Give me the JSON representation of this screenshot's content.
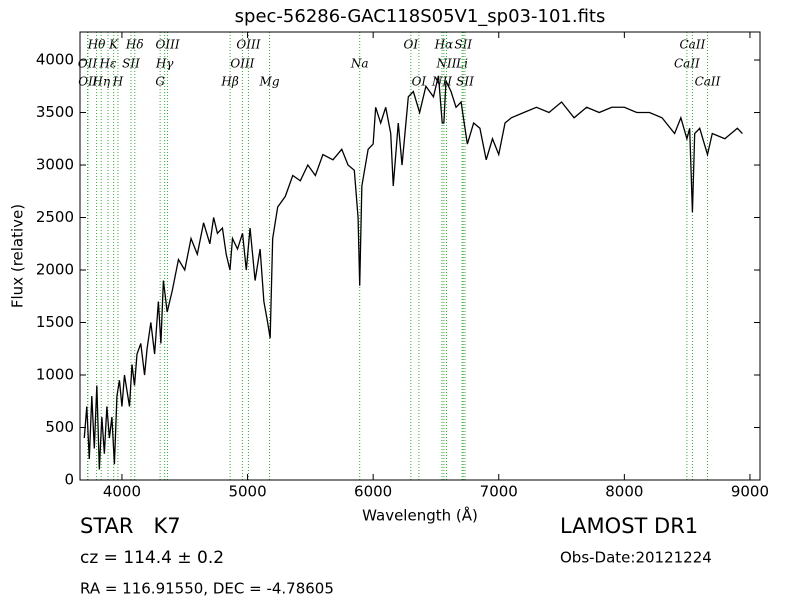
{
  "chart_data": {
    "type": "line",
    "title": "spec-56286-GAC118S05V1_sp03-101.fits",
    "x_label": "Wavelength (Å)",
    "y_label": "Flux (relative)",
    "xlim": [
      3666,
      9080
    ],
    "ylim": [
      0,
      4267
    ],
    "xticks": [
      4000,
      5000,
      6000,
      7000,
      8000,
      9000
    ],
    "yticks": [
      0,
      500,
      1000,
      1500,
      2000,
      2500,
      3000,
      3500,
      4000
    ],
    "grid": false,
    "series": [
      {
        "color": "#000000",
        "x": [
          3700,
          3720,
          3740,
          3760,
          3780,
          3800,
          3820,
          3840,
          3860,
          3880,
          3900,
          3920,
          3940,
          3960,
          3980,
          4000,
          4020,
          4040,
          4060,
          4080,
          4100,
          4120,
          4150,
          4180,
          4200,
          4230,
          4260,
          4290,
          4310,
          4330,
          4360,
          4400,
          4450,
          4500,
          4550,
          4600,
          4650,
          4700,
          4730,
          4760,
          4800,
          4830,
          4860,
          4880,
          4920,
          4960,
          4990,
          5020,
          5060,
          5100,
          5130,
          5160,
          5180,
          5200,
          5240,
          5300,
          5360,
          5420,
          5480,
          5540,
          5600,
          5680,
          5750,
          5800,
          5850,
          5880,
          5893,
          5910,
          5960,
          6000,
          6020,
          6060,
          6100,
          6140,
          6160,
          6200,
          6230,
          6280,
          6320,
          6370,
          6420,
          6480,
          6520,
          6550,
          6563,
          6580,
          6620,
          6660,
          6700,
          6750,
          6800,
          6850,
          6900,
          6950,
          7000,
          7050,
          7100,
          7200,
          7300,
          7400,
          7500,
          7600,
          7700,
          7800,
          7900,
          8000,
          8100,
          8200,
          8300,
          8400,
          8450,
          8498,
          8520,
          8542,
          8560,
          8600,
          8662,
          8700,
          8800,
          8900,
          8940
        ],
        "values": [
          400,
          700,
          200,
          800,
          300,
          900,
          100,
          600,
          250,
          700,
          400,
          600,
          150,
          800,
          950,
          700,
          1000,
          850,
          700,
          1100,
          900,
          1200,
          1300,
          1000,
          1250,
          1500,
          1200,
          1700,
          1300,
          1900,
          1600,
          1800,
          2100,
          2000,
          2300,
          2150,
          2450,
          2250,
          2500,
          2350,
          2400,
          2150,
          2000,
          2300,
          2200,
          2350,
          2000,
          2400,
          1900,
          2200,
          1700,
          1500,
          1350,
          2300,
          2600,
          2700,
          2900,
          2850,
          3000,
          2900,
          3100,
          3050,
          3150,
          3000,
          2950,
          2500,
          1850,
          2800,
          3150,
          3200,
          3550,
          3400,
          3550,
          3300,
          2800,
          3400,
          3000,
          3650,
          3700,
          3500,
          3750,
          3650,
          3850,
          3400,
          3400,
          3800,
          3700,
          3550,
          3600,
          3200,
          3400,
          3350,
          3050,
          3250,
          3100,
          3400,
          3450,
          3500,
          3550,
          3500,
          3600,
          3450,
          3550,
          3500,
          3550,
          3550,
          3500,
          3500,
          3450,
          3300,
          3450,
          3250,
          3350,
          2550,
          3300,
          3350,
          3100,
          3300,
          3250,
          3350,
          3300
        ]
      }
    ],
    "line_color": "#33aa33",
    "lines": [
      {
        "label": "OII",
        "wavelength": 3726
      },
      {
        "label": "OII",
        "wavelength": 3729
      },
      {
        "label": "Hθ",
        "wavelength": 3798
      },
      {
        "label": "Hη",
        "wavelength": 3835
      },
      {
        "label": "Hε",
        "wavelength": 3889
      },
      {
        "label": "K",
        "wavelength": 3934
      },
      {
        "label": "H",
        "wavelength": 3968
      },
      {
        "label": "SII",
        "wavelength": 4072
      },
      {
        "label": "Hδ",
        "wavelength": 4102
      },
      {
        "label": "G",
        "wavelength": 4304
      },
      {
        "label": "Hγ",
        "wavelength": 4340
      },
      {
        "label": "OIII",
        "wavelength": 4363
      },
      {
        "label": "Hβ",
        "wavelength": 4861
      },
      {
        "label": "OIII",
        "wavelength": 4959
      },
      {
        "label": "OIII",
        "wavelength": 5007
      },
      {
        "label": "Mg",
        "wavelength": 5175
      },
      {
        "label": "Na",
        "wavelength": 5893
      },
      {
        "label": "OI",
        "wavelength": 6300
      },
      {
        "label": "OI",
        "wavelength": 6364
      },
      {
        "label": "NII",
        "wavelength": 6548
      },
      {
        "label": "Hα",
        "wavelength": 6563
      },
      {
        "label": "NII",
        "wavelength": 6584
      },
      {
        "label": "Li",
        "wavelength": 6708
      },
      {
        "label": "SII",
        "wavelength": 6717
      },
      {
        "label": "SII",
        "wavelength": 6731
      },
      {
        "label": "CaII",
        "wavelength": 8498
      },
      {
        "label": "CaII",
        "wavelength": 8542
      },
      {
        "label": "CaII",
        "wavelength": 8662
      }
    ],
    "info": {
      "class": "STAR   K7",
      "cz": "cz = 114.4 ± 0.2",
      "survey": "LAMOST DR1",
      "obs_date": "Obs-Date:20121224",
      "coords": "RA = 116.91550, DEC = -4.78605"
    }
  }
}
